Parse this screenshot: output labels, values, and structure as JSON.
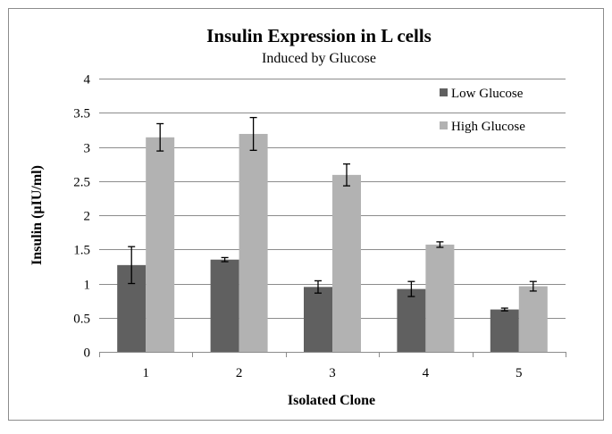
{
  "chart_data": {
    "type": "bar",
    "title": "Insulin Expression in L cells",
    "subtitle": "Induced by Glucose",
    "xlabel": "Isolated Clone",
    "ylabel": "Insulin (µIU/ml)",
    "categories": [
      "1",
      "2",
      "3",
      "4",
      "5"
    ],
    "ylim": [
      0,
      4
    ],
    "yticks": [
      "0",
      "0.5",
      "1",
      "1.5",
      "2",
      "2.5",
      "3",
      "3.5",
      "4"
    ],
    "grid": true,
    "legend_position": "top-right",
    "series": [
      {
        "name": "Low Glucose",
        "color": "#606060",
        "values": [
          1.27,
          1.35,
          0.95,
          0.92,
          0.62
        ],
        "errors": [
          0.27,
          0.03,
          0.09,
          0.11,
          0.02
        ]
      },
      {
        "name": "High Glucose",
        "color": "#b2b2b2",
        "values": [
          3.14,
          3.19,
          2.59,
          1.57,
          0.96
        ],
        "errors": [
          0.2,
          0.24,
          0.16,
          0.04,
          0.07
        ]
      }
    ]
  }
}
